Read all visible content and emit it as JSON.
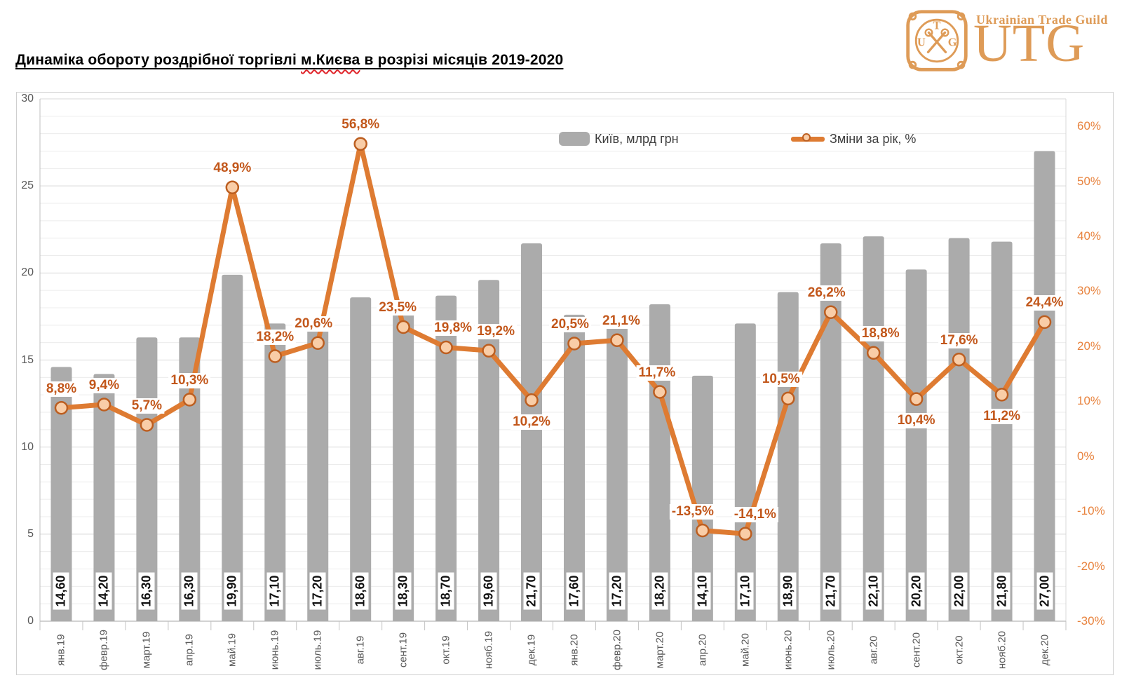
{
  "header": {
    "title_prefix": "Динаміка обороту роздрібної торгівлі ",
    "title_marked": "м.Києва",
    "title_suffix": " в розрізі місяців 2019-2020"
  },
  "logo": {
    "guild_text": "Ukrainian Trade Guild",
    "abbrev": "UTG",
    "emblem_letters": {
      "top": "T",
      "left": "U",
      "right": "G"
    },
    "color": "#de9b57"
  },
  "legend": [
    {
      "label": "Київ, млрд грн",
      "type": "bar"
    },
    {
      "label": "Зміни за рік, %",
      "type": "line"
    }
  ],
  "chart_data": {
    "type": "combo",
    "title": "Динаміка обороту роздрібної торгівлі м.Києва в розрізі місяців 2019-2020",
    "categories": [
      "янв.19",
      "февр.19",
      "март.19",
      "апр.19",
      "май.19",
      "июнь.19",
      "июль.19",
      "авг.19",
      "сент.19",
      "окт.19",
      "нояб.19",
      "дек.19",
      "янв.20",
      "февр.20",
      "март.20",
      "апр.20",
      "май.20",
      "июнь.20",
      "июль.20",
      "авг.20",
      "сент.20",
      "окт.20",
      "нояб.20",
      "дек.20"
    ],
    "series": [
      {
        "name": "Київ, млрд грн",
        "type": "bar",
        "axis": "left",
        "values": [
          14.6,
          14.2,
          16.3,
          16.3,
          19.9,
          17.1,
          17.2,
          18.6,
          18.3,
          18.7,
          19.6,
          21.7,
          17.6,
          17.2,
          18.2,
          14.1,
          17.1,
          18.9,
          21.7,
          22.1,
          20.2,
          22.0,
          21.8,
          27.0
        ],
        "labels": [
          "14,60",
          "14,20",
          "16,30",
          "16,30",
          "19,90",
          "17,10",
          "17,20",
          "18,60",
          "18,30",
          "18,70",
          "19,60",
          "21,70",
          "17,60",
          "17,20",
          "18,20",
          "14,10",
          "17,10",
          "18,90",
          "21,70",
          "22,10",
          "20,20",
          "22,00",
          "21,80",
          "27,00"
        ]
      },
      {
        "name": "Зміни за рік, %",
        "type": "line",
        "axis": "right",
        "values": [
          8.8,
          9.4,
          5.7,
          10.3,
          48.9,
          18.2,
          20.6,
          56.8,
          23.5,
          19.8,
          19.2,
          10.2,
          20.5,
          21.1,
          11.7,
          -13.5,
          -14.1,
          10.5,
          26.2,
          18.8,
          10.4,
          17.6,
          11.2,
          24.4
        ],
        "labels": [
          "8,8%",
          "9,4%",
          "5,7%",
          "10,3%",
          "48,9%",
          "18,2%",
          "20,6%",
          "56,8%",
          "23,5%",
          "19,8%",
          "19,2%",
          "10,2%",
          "20,5%",
          "21,1%",
          "11,7%",
          "-13,5%",
          "-14,1%",
          "10,5%",
          "26,2%",
          "18,8%",
          "10,4%",
          "17,6%",
          "11,2%",
          "24,4%"
        ],
        "label_side": [
          "above",
          "above",
          "above",
          "above",
          "above",
          "above",
          "above",
          "above",
          "above",
          "above",
          "above",
          "below",
          "above",
          "above",
          "above",
          "above",
          "above",
          "above",
          "above",
          "above",
          "below",
          "above",
          "below",
          "above"
        ],
        "label_dx": [
          0,
          0,
          0,
          0,
          0,
          0,
          -6,
          0,
          -8,
          10,
          10,
          0,
          -6,
          6,
          -4,
          -14,
          14,
          -10,
          -6,
          10,
          0,
          0,
          0,
          0
        ]
      }
    ],
    "left_axis": {
      "min": 0,
      "max": 30,
      "major_step": 5,
      "minor_step": 1,
      "tick_values": [
        0,
        5,
        10,
        15,
        20,
        25,
        30
      ],
      "tick_labels": [
        "0",
        "5",
        "10",
        "15",
        "20",
        "25",
        "30"
      ]
    },
    "right_axis": {
      "min": -30,
      "max": 65,
      "tick_values": [
        -30,
        -20,
        -10,
        0,
        10,
        20,
        30,
        40,
        50,
        60
      ],
      "tick_labels": [
        "-30%",
        "-20%",
        "-10%",
        "0%",
        "10%",
        "20%",
        "30%",
        "40%",
        "50%",
        "60%"
      ]
    },
    "grid": true,
    "legend_position": "inside-top",
    "colors": {
      "bar": "#ababab",
      "line": "#de7b32",
      "marker_fill": "#f9cda7",
      "marker_stroke": "#bc5e20",
      "pct_label": "#c2571b",
      "bar_label": "#121212",
      "axis_label": "#595959",
      "right_axis_label": "#e8833e",
      "grid_minor": "#ececec",
      "grid_major": "#d8d8d8",
      "axis_line": "#c3c3c3"
    }
  }
}
